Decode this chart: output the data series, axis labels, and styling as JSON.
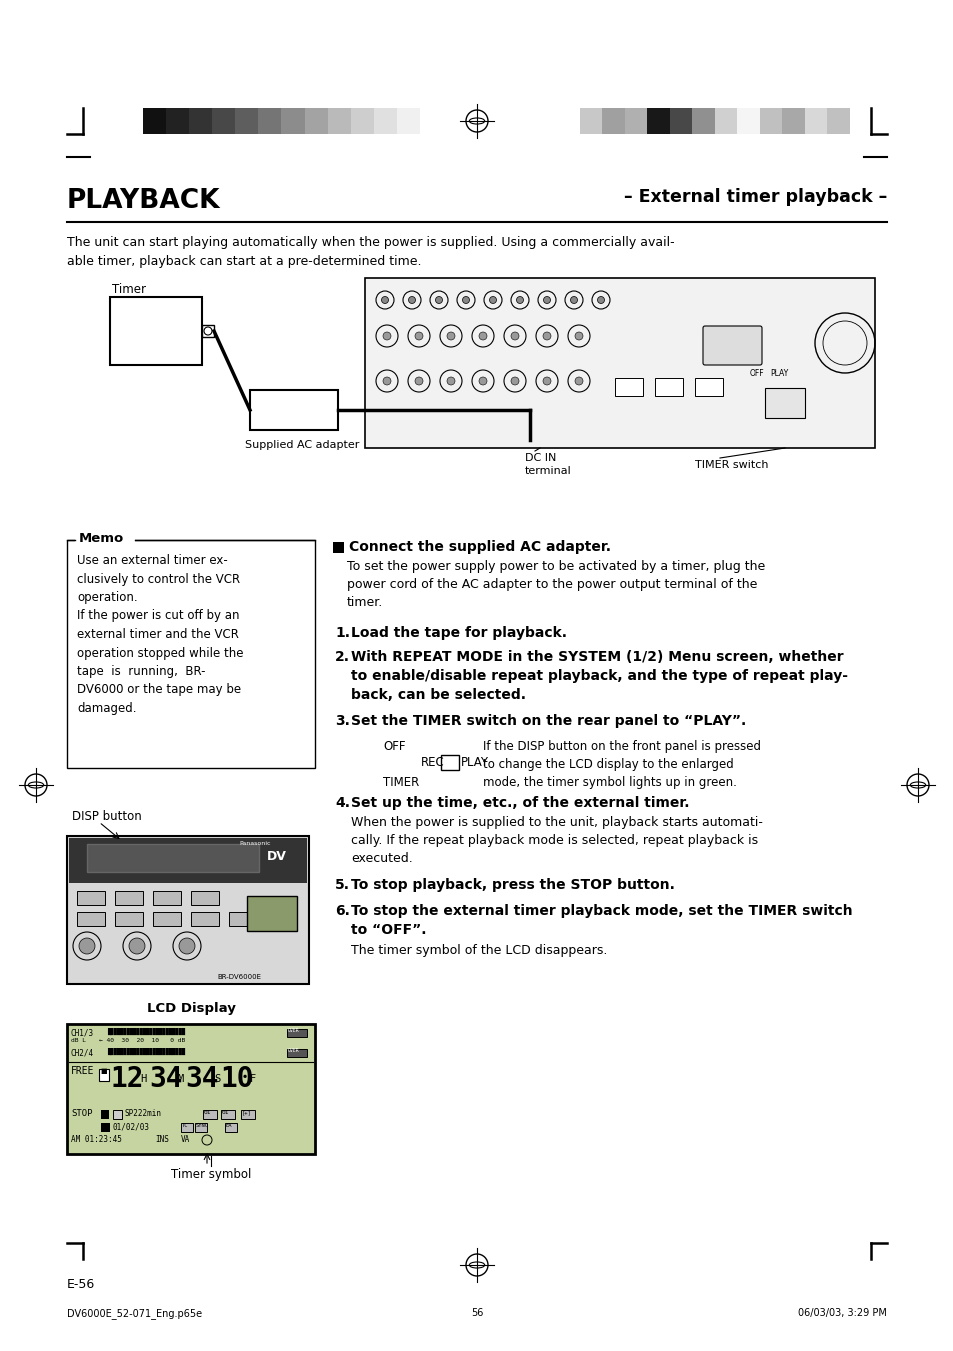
{
  "page_bg": "#ffffff",
  "page_width": 9.54,
  "page_height": 13.51,
  "dpi": 100,
  "header_bar_left_colors": [
    "#111111",
    "#222222",
    "#333333",
    "#484848",
    "#5e5e5e",
    "#757575",
    "#8c8c8c",
    "#a3a3a3",
    "#bababa",
    "#cecece",
    "#e0e0e0",
    "#f0f0f0"
  ],
  "header_bar_right_colors": [
    "#c8c8c8",
    "#a0a0a0",
    "#b0b0b0",
    "#181818",
    "#484848",
    "#909090",
    "#d0d0d0",
    "#f5f5f5",
    "#c0c0c0",
    "#a8a8a8",
    "#d8d8d8",
    "#c0c0c0"
  ],
  "title_left": "PLAYBACK",
  "title_right": "– External timer playback –",
  "intro_text": "The unit can start playing automatically when the power is supplied. Using a commercially avail-\nable timer, playback can start at a pre-determined time.",
  "memo_title": "Memo",
  "memo_text": "Use an external timer ex-\nclusively to control the VCR\noperation.\nIf the power is cut off by an\nexternal timer and the VCR\noperation stopped while the\ntape  is  running,  BR-\nDV6000 or the tape may be\ndamaged.",
  "section_title": "Connect the supplied AC adapter.",
  "section_text": "To set the power supply power to be activated by a timer, plug the\npower cord of the AC adapter to the power output terminal of the\ntimer.",
  "timer_label": "Timer",
  "supplied_ac_label": "Supplied AC adapter",
  "dc_in_label": "DC IN\nterminal",
  "timer_switch_label": "TIMER switch",
  "disp_label": "DISP button",
  "lcd_label": "LCD Display",
  "timer_symbol_label": "Timer symbol",
  "footer_left": "DV6000E_52-071_Eng.p65e",
  "footer_center": "56",
  "footer_right": "06/03/03, 3:29 PM",
  "page_num": "E-56"
}
